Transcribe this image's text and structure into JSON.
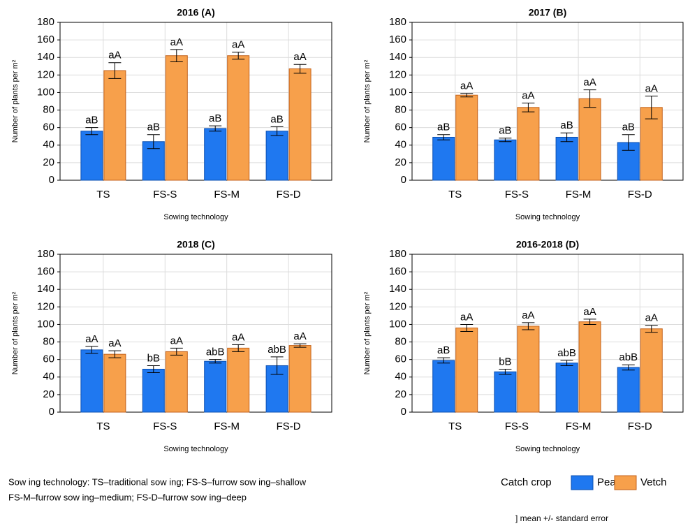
{
  "chart_data": [
    {
      "type": "bar",
      "title": "2016 (A)",
      "xlabel": "Sowing technology",
      "ylabel": "Number of plants per m²",
      "categories": [
        "TS",
        "FS-S",
        "FS-M",
        "FS-D"
      ],
      "series": [
        {
          "name": "Pea;",
          "color": "#1f78f0",
          "values": [
            56,
            44,
            59,
            56
          ],
          "errors": [
            4,
            8,
            3,
            5
          ],
          "labels": [
            "aB",
            "aB",
            "aB",
            "aB"
          ]
        },
        {
          "name": "Vetch",
          "color": "#f7a04b",
          "values": [
            125,
            142,
            142,
            127
          ],
          "errors": [
            9,
            7,
            4,
            5
          ],
          "labels": [
            "aA",
            "aA",
            "aA",
            "aA"
          ]
        }
      ],
      "ylim": [
        0,
        180
      ],
      "yticks": [
        0,
        20,
        40,
        60,
        80,
        100,
        120,
        140,
        160,
        180
      ],
      "grid": true
    },
    {
      "type": "bar",
      "title": "2017 (B)",
      "xlabel": "Sowing technology",
      "ylabel": "Number of plants per m²",
      "categories": [
        "TS",
        "FS-S",
        "FS-M",
        "FS-D"
      ],
      "series": [
        {
          "name": "Pea;",
          "color": "#1f78f0",
          "values": [
            49,
            46,
            49,
            43
          ],
          "errors": [
            3,
            2,
            5,
            9
          ],
          "labels": [
            "aB",
            "aB",
            "aB",
            "aB"
          ]
        },
        {
          "name": "Vetch",
          "color": "#f7a04b",
          "values": [
            97,
            83,
            93,
            83
          ],
          "errors": [
            2,
            5,
            10,
            13
          ],
          "labels": [
            "aA",
            "aA",
            "aA",
            "aA"
          ]
        }
      ],
      "ylim": [
        0,
        180
      ],
      "yticks": [
        0,
        20,
        40,
        60,
        80,
        100,
        120,
        140,
        160,
        180
      ],
      "grid": true
    },
    {
      "type": "bar",
      "title": "2018 (C)",
      "xlabel": "Sowing technology",
      "ylabel": "Number of plants per m²",
      "categories": [
        "TS",
        "FS-S",
        "FS-M",
        "FS-D"
      ],
      "series": [
        {
          "name": "Pea;",
          "color": "#1f78f0",
          "values": [
            71,
            49,
            58,
            53
          ],
          "errors": [
            4,
            4,
            2,
            10
          ],
          "labels": [
            "aA",
            "bB",
            "abB",
            "abB"
          ]
        },
        {
          "name": "Vetch",
          "color": "#f7a04b",
          "values": [
            66,
            69,
            73,
            76
          ],
          "errors": [
            4,
            4,
            4,
            2
          ],
          "labels": [
            "aA",
            "aA",
            "aA",
            "aA"
          ]
        }
      ],
      "ylim": [
        0,
        180
      ],
      "yticks": [
        0,
        20,
        40,
        60,
        80,
        100,
        120,
        140,
        160,
        180
      ],
      "grid": true
    },
    {
      "type": "bar",
      "title": "2016-2018 (D)",
      "xlabel": "Sowing technology",
      "ylabel": "Number of plants per m²",
      "categories": [
        "TS",
        "FS-S",
        "FS-M",
        "FS-D"
      ],
      "series": [
        {
          "name": "Pea;",
          "color": "#1f78f0",
          "values": [
            59,
            46,
            56,
            51
          ],
          "errors": [
            3,
            3,
            3,
            3
          ],
          "labels": [
            "aB",
            "bB",
            "abB",
            "abB"
          ]
        },
        {
          "name": "Vetch",
          "color": "#f7a04b",
          "values": [
            96,
            98,
            103,
            95
          ],
          "errors": [
            4,
            4,
            3,
            4
          ],
          "labels": [
            "aA",
            "aA",
            "aA",
            "aA"
          ]
        }
      ],
      "ylim": [
        0,
        180
      ],
      "yticks": [
        0,
        20,
        40,
        60,
        80,
        100,
        120,
        140,
        160,
        180
      ],
      "grid": true
    }
  ],
  "legend": {
    "title": "Catch crop"
  },
  "notes": [
    "Sow ing technology: TS–traditional sow ing; FS-S–furrow sow ing–shallow",
    "FS-M–furrow sow ing–medium; FS-D–furrow sow ing–deep"
  ],
  "error_note": "] mean +/- standard error"
}
